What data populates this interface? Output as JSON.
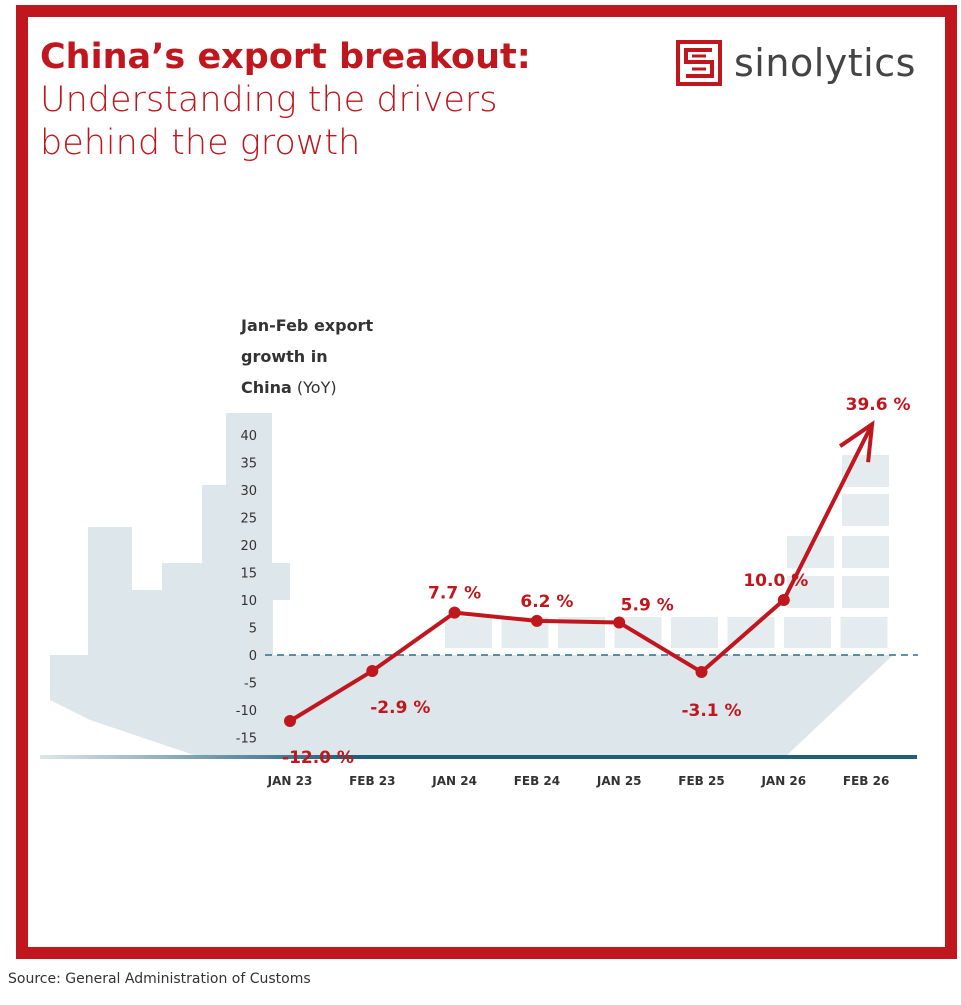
{
  "header": {
    "title_bold": "China’s export breakout:",
    "title_line2": "Understanding the drivers",
    "title_line3": "behind the growth"
  },
  "logo": {
    "text": "sinolytics",
    "icon": "sinolytics-maze-s-icon"
  },
  "colors": {
    "accent": "#c0161d",
    "ship": "#dde6eb",
    "waterline": "#1f5f78"
  },
  "chart_data": {
    "type": "line",
    "ylabel_bold": "Jan-Feb export growth in China",
    "ylabel_unit": "(YoY)",
    "ylabel_line1": "Jan-Feb export",
    "ylabel_line2": "growth in",
    "ylabel_line3": "China",
    "categories": [
      "JAN 23",
      "FEB 23",
      "JAN 24",
      "FEB 24",
      "JAN 25",
      "FEB 25",
      "JAN 26",
      "FEB 26"
    ],
    "values": [
      -12.0,
      -2.9,
      7.7,
      6.2,
      5.9,
      -3.1,
      10.0,
      39.6
    ],
    "data_labels": [
      "-12.0 %",
      "-2.9 %",
      "7.7 %",
      "6.2 %",
      "5.9 %",
      "-3.1 %",
      "10.0 %",
      "39.6 %"
    ],
    "yticks": [
      40,
      35,
      30,
      25,
      20,
      15,
      10,
      5,
      0,
      -5,
      -10,
      -15
    ],
    "ylim": [
      -18,
      42
    ],
    "zero_line": "dashed",
    "last_point": "arrow",
    "grid": false
  },
  "footer": {
    "source": "Source: General Administration of Customs"
  }
}
